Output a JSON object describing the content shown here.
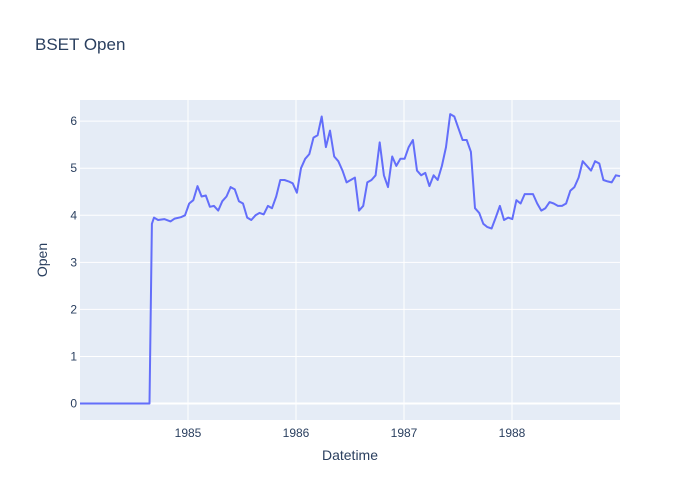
{
  "chart_data": {
    "type": "line",
    "title": "BSET Open",
    "xlabel": "Datetime",
    "ylabel": "Open",
    "x_tick_labels": [
      "1985",
      "1986",
      "1987",
      "1988"
    ],
    "y_tick_labels": [
      "0",
      "1",
      "2",
      "3",
      "4",
      "5",
      "6"
    ],
    "xlim": [
      "1984-01-02",
      "1988-12-31"
    ],
    "ylim": [
      -0.35,
      6.45
    ],
    "grid": true,
    "legend": "none",
    "colors": {
      "line": "#636efa",
      "plot_bg": "#e5ecf6",
      "grid": "#ffffff",
      "text": "#2a3f5f"
    },
    "series": [
      {
        "x": [
          "1984-01-02",
          "1984-03-01",
          "1984-05-01",
          "1984-07-01",
          "1984-08-24",
          "1984-09-01",
          "1984-09-08",
          "1984-09-22",
          "1984-10-13",
          "1984-11-03",
          "1984-11-17",
          "1984-12-08",
          "1984-12-22",
          "1985-01-05",
          "1985-01-19",
          "1985-02-02",
          "1985-02-16",
          "1985-03-02",
          "1985-03-16",
          "1985-03-30",
          "1985-04-13",
          "1985-04-27",
          "1985-05-11",
          "1985-05-25",
          "1985-06-08",
          "1985-06-22",
          "1985-07-06",
          "1985-07-20",
          "1985-08-03",
          "1985-08-17",
          "1985-08-31",
          "1985-09-14",
          "1985-09-28",
          "1985-10-12",
          "1985-10-26",
          "1985-11-09",
          "1985-11-23",
          "1985-12-07",
          "1985-12-21",
          "1986-01-04",
          "1986-01-18",
          "1986-02-01",
          "1986-02-15",
          "1986-03-01",
          "1986-03-15",
          "1986-03-29",
          "1986-04-12",
          "1986-04-26",
          "1986-05-10",
          "1986-05-24",
          "1986-06-07",
          "1986-06-21",
          "1986-07-05",
          "1986-07-19",
          "1986-08-02",
          "1986-08-16",
          "1986-08-30",
          "1986-09-13",
          "1986-09-27",
          "1986-10-11",
          "1986-10-25",
          "1986-11-08",
          "1986-11-22",
          "1986-12-06",
          "1986-12-20",
          "1987-01-03",
          "1987-01-17",
          "1987-01-31",
          "1987-02-14",
          "1987-02-28",
          "1987-03-14",
          "1987-03-28",
          "1987-04-11",
          "1987-04-25",
          "1987-05-09",
          "1987-05-23",
          "1987-06-06",
          "1987-06-20",
          "1987-07-04",
          "1987-07-18",
          "1987-08-01",
          "1987-08-15",
          "1987-08-29",
          "1987-09-12",
          "1987-09-26",
          "1987-10-10",
          "1987-10-24",
          "1987-11-07",
          "1987-11-21",
          "1987-12-05",
          "1987-12-19",
          "1988-01-02",
          "1988-01-16",
          "1988-01-30",
          "1988-02-13",
          "1988-02-27",
          "1988-03-12",
          "1988-03-26",
          "1988-04-09",
          "1988-04-23",
          "1988-05-07",
          "1988-05-21",
          "1988-06-04",
          "1988-06-18",
          "1988-07-02",
          "1988-07-16",
          "1988-07-30",
          "1988-08-13",
          "1988-08-27",
          "1988-09-10",
          "1988-09-24",
          "1988-10-08",
          "1988-10-22",
          "1988-11-05",
          "1988-11-19",
          "1988-12-03",
          "1988-12-17",
          "1988-12-31"
        ],
        "y": [
          0,
          0,
          0,
          0,
          0,
          3.82,
          3.95,
          3.9,
          3.92,
          3.87,
          3.93,
          3.96,
          4.0,
          4.25,
          4.32,
          4.62,
          4.4,
          4.42,
          4.18,
          4.2,
          4.1,
          4.3,
          4.4,
          4.6,
          4.55,
          4.3,
          4.25,
          3.95,
          3.9,
          4.0,
          4.05,
          4.02,
          4.2,
          4.15,
          4.4,
          4.75,
          4.75,
          4.72,
          4.68,
          4.48,
          5.0,
          5.2,
          5.3,
          5.65,
          5.7,
          6.1,
          5.45,
          5.8,
          5.25,
          5.15,
          4.95,
          4.7,
          4.75,
          4.8,
          4.1,
          4.2,
          4.7,
          4.75,
          4.85,
          5.55,
          4.85,
          4.6,
          5.25,
          5.05,
          5.2,
          5.2,
          5.45,
          5.6,
          4.95,
          4.85,
          4.9,
          4.62,
          4.85,
          4.75,
          5.05,
          5.45,
          6.15,
          6.1,
          5.85,
          5.6,
          5.6,
          5.35,
          4.15,
          4.05,
          3.82,
          3.75,
          3.72,
          3.95,
          4.2,
          3.9,
          3.95,
          3.92,
          4.32,
          4.25,
          4.45,
          4.45,
          4.45,
          4.25,
          4.1,
          4.15,
          4.28,
          4.25,
          4.2,
          4.2,
          4.25,
          4.52,
          4.6,
          4.8,
          5.15,
          5.05,
          4.95,
          5.15,
          5.1,
          4.75,
          4.72,
          4.7,
          4.85,
          4.83
        ]
      }
    ]
  }
}
